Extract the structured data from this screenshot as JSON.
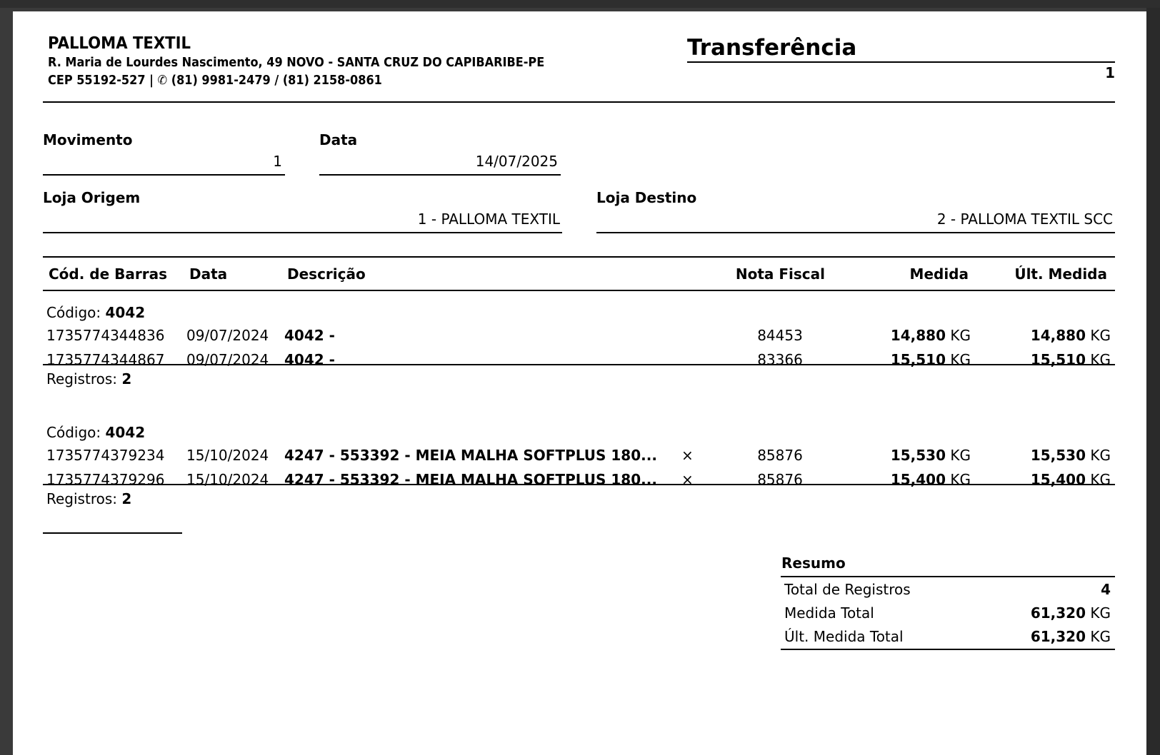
{
  "company": {
    "name": "PALLOMA TEXTIL",
    "address": "R. Maria de Lourdes Nascimento, 49 NOVO - SANTA CRUZ DO CAPIBARIBE-PE",
    "cep_line": "CEP 55192-527  | ✆ (81) 9981-2479 / (81) 2158-0861"
  },
  "document": {
    "title": "Transferência",
    "page": "1"
  },
  "fields": {
    "movimento": {
      "label": "Movimento",
      "value": "1"
    },
    "data": {
      "label": "Data",
      "value": "14/07/2025"
    },
    "loja_origem": {
      "label": "Loja Origem",
      "value": "1 - PALLOMA TEXTIL"
    },
    "loja_destino": {
      "label": "Loja Destino",
      "value": "2 - PALLOMA TEXTIL SCC"
    }
  },
  "table": {
    "headers": [
      "Cód. de Barras",
      "Data",
      "Descrição",
      "Nota Fiscal",
      "Medida",
      "Últ. Medida"
    ],
    "code_label": "Código:",
    "records_label": "Registros:",
    "unit": "KG",
    "groups": [
      {
        "code": "4042",
        "records": "2",
        "rows": [
          {
            "barcode": "1735774344836",
            "date": "09/07/2024",
            "desc": "4042 -",
            "mark": "",
            "nf": "84453",
            "medida": "14,880",
            "ult": "14,880"
          },
          {
            "barcode": "1735774344867",
            "date": "09/07/2024",
            "desc": "4042 -",
            "mark": "",
            "nf": "83366",
            "medida": "15,510",
            "ult": "15,510"
          }
        ]
      },
      {
        "code": "4042",
        "records": "2",
        "rows": [
          {
            "barcode": "1735774379234",
            "date": "15/10/2024",
            "desc": "4247 - 553392 - MEIA MALHA SOFTPLUS 180...",
            "mark": "×",
            "nf": "85876",
            "medida": "15,530",
            "ult": "15,530"
          },
          {
            "barcode": "1735774379296",
            "date": "15/10/2024",
            "desc": "4247 - 553392 - MEIA MALHA SOFTPLUS 180...",
            "mark": "×",
            "nf": "85876",
            "medida": "15,400",
            "ult": "15,400"
          }
        ]
      }
    ]
  },
  "summary": {
    "title": "Resumo",
    "rows": [
      {
        "label": "Total de Registros",
        "value": "4",
        "unit": ""
      },
      {
        "label": "Medida Total",
        "value": "61,320",
        "unit": "KG"
      },
      {
        "label": "Últ. Medida Total",
        "value": "61,320",
        "unit": "KG"
      }
    ]
  }
}
